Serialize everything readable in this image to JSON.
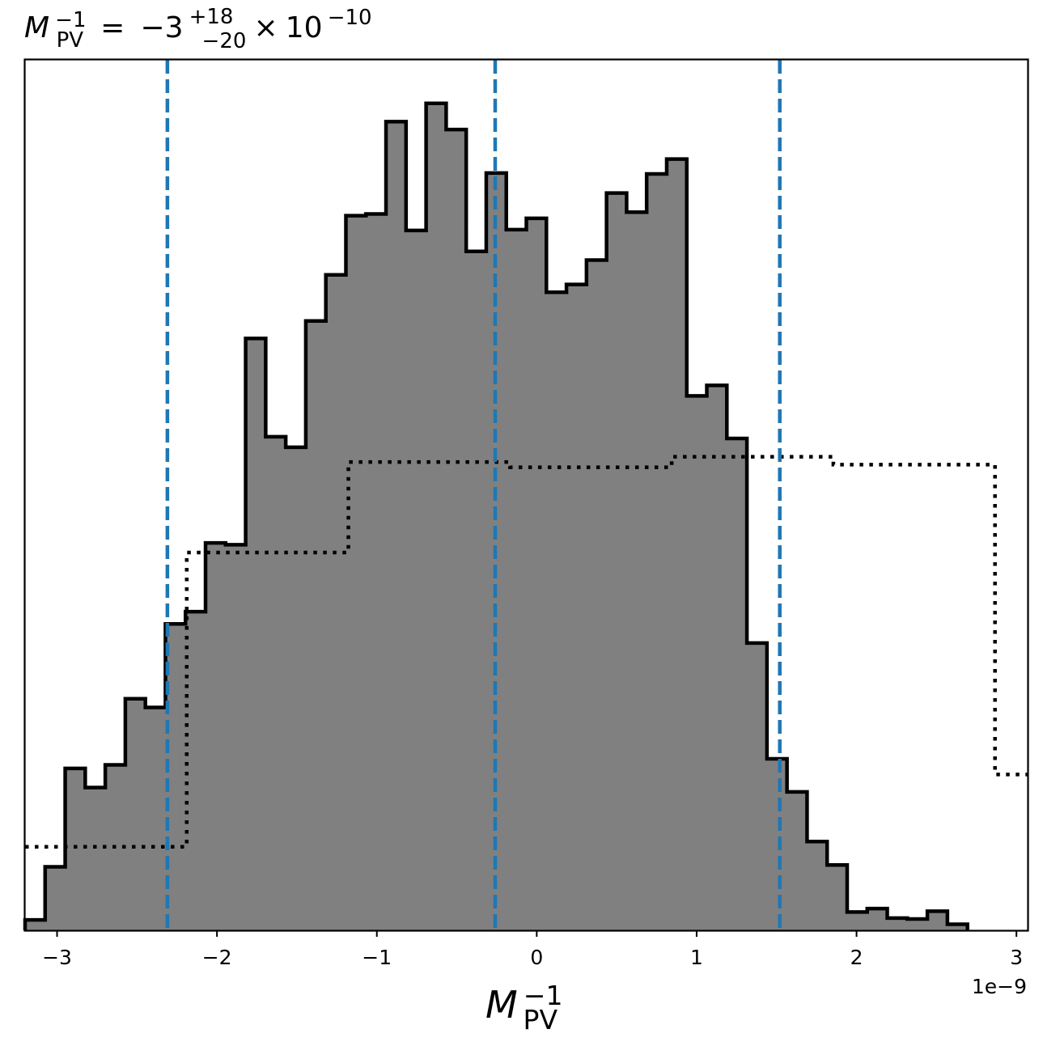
{
  "chart_data": {
    "type": "histogram",
    "title": {
      "symbol": "M",
      "symbol_sub": "PV",
      "symbol_sup": "−1",
      "equals": "=",
      "median": "−3",
      "upper": "+18",
      "lower": "−20",
      "times": "×",
      "base": "10",
      "exponent": "−10"
    },
    "xlabel": {
      "symbol": "M",
      "sub": "PV",
      "sup": "−1"
    },
    "x_offset_label": "1e−9",
    "xlim": [
      -3.2,
      3.07
    ],
    "ylim": [
      0,
      1.0
    ],
    "xticks": [
      -3,
      -2,
      -1,
      0,
      1,
      2,
      3
    ],
    "xtick_labels": [
      "−3",
      "−2",
      "−1",
      "0",
      "1",
      "2",
      "3"
    ],
    "quantile_lines": [
      -2.31,
      -0.26,
      1.52
    ],
    "quantile_color": "#1f77b4",
    "histogram_fill": "#808080",
    "histogram_edge": "#000000",
    "posterior_hist": {
      "bin_start": -3.2,
      "bin_width": 0.1254,
      "heights": [
        0.012,
        0.073,
        0.186,
        0.164,
        0.19,
        0.266,
        0.256,
        0.352,
        0.366,
        0.445,
        0.443,
        0.68,
        0.567,
        0.555,
        0.7,
        0.753,
        0.821,
        0.823,
        0.929,
        0.804,
        0.95,
        0.92,
        0.78,
        0.87,
        0.805,
        0.818,
        0.733,
        0.742,
        0.77,
        0.847,
        0.825,
        0.869,
        0.886,
        0.614,
        0.626,
        0.565,
        0.33,
        0.197,
        0.159,
        0.102,
        0.075,
        0.021,
        0.025,
        0.014,
        0.013,
        0.022,
        0.007
      ]
    },
    "prior_hist": {
      "bin_start": -3.2,
      "bin_width": 1.011,
      "heights": [
        0.096,
        0.434,
        0.538,
        0.532,
        0.544,
        0.535,
        0.179
      ]
    }
  }
}
